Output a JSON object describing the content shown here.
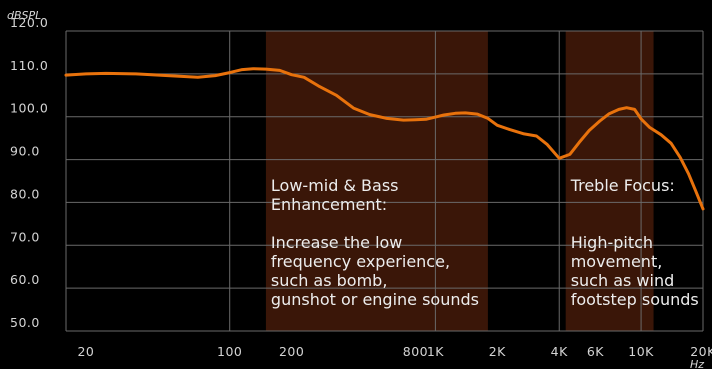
{
  "chart_data": {
    "type": "line",
    "ylabel": "dBSPL",
    "xunit": "Hz",
    "xscale": "log",
    "xlim": [
      16,
      20000
    ],
    "ylim": [
      50,
      120
    ],
    "grid": true,
    "colors": {
      "background": "#000000",
      "line": "#e8720c",
      "band": "#3a1608",
      "grid": "#6a6a6a",
      "text": "#d4d4d4"
    },
    "y_ticks": [
      {
        "value": 120,
        "label": "120.0"
      },
      {
        "value": 110,
        "label": "110.0"
      },
      {
        "value": 100,
        "label": "100.0"
      },
      {
        "value": 90,
        "label": "90.0"
      },
      {
        "value": 80,
        "label": "80.0"
      },
      {
        "value": 70,
        "label": "70.0"
      },
      {
        "value": 60,
        "label": "60.0"
      },
      {
        "value": 50,
        "label": "50.0"
      }
    ],
    "x_ticks": [
      {
        "value": 20,
        "label": "20"
      },
      {
        "value": 100,
        "label": "100"
      },
      {
        "value": 200,
        "label": "200"
      },
      {
        "value": 800,
        "label": "800"
      },
      {
        "value": 1000,
        "label": "1K"
      },
      {
        "value": 2000,
        "label": "2K"
      },
      {
        "value": 4000,
        "label": "4K"
      },
      {
        "value": 6000,
        "label": "6K"
      },
      {
        "value": 10000,
        "label": "10K"
      },
      {
        "value": 20000,
        "label": "20K"
      }
    ],
    "vertical_gridlines": [
      100,
      1000,
      4000,
      10000
    ],
    "bands": [
      {
        "from": 150,
        "to": 1800
      },
      {
        "from": 4300,
        "to": 11500
      }
    ],
    "annotations": [
      {
        "band": 0,
        "heading": [
          "Low-mid & Bass",
          "Enhancement:"
        ],
        "body": [
          "Increase the low",
          "frequency experience,",
          "such as bomb,",
          "gunshot or engine sounds"
        ]
      },
      {
        "band": 1,
        "heading": [
          "Treble Focus:"
        ],
        "body": [
          "High-pitch",
          "movement,",
          "such as wind",
          "footstep sounds"
        ]
      }
    ],
    "series": [
      {
        "x": [
          16,
          20,
          25,
          35,
          50,
          70,
          85,
          100,
          115,
          130,
          150,
          175,
          200,
          230,
          270,
          330,
          400,
          480,
          580,
          700,
          800,
          900,
          1000,
          1100,
          1250,
          1400,
          1600,
          1800,
          2000,
          2300,
          2700,
          3100,
          3500,
          4000,
          4500,
          5000,
          5600,
          6300,
          7000,
          7800,
          8500,
          9300,
          10000,
          11000,
          12500,
          14000,
          15500,
          17000,
          18500,
          20000
        ],
        "y": [
          109.7,
          110.0,
          110.1,
          110.0,
          109.6,
          109.2,
          109.6,
          110.3,
          111.0,
          111.2,
          111.1,
          110.8,
          109.8,
          109.2,
          107.2,
          105.0,
          102.0,
          100.5,
          99.6,
          99.2,
          99.3,
          99.4,
          99.9,
          100.4,
          100.8,
          100.9,
          100.6,
          99.6,
          98.0,
          97.0,
          96.0,
          95.5,
          93.5,
          90.3,
          91.2,
          94.0,
          96.8,
          99.0,
          100.7,
          101.7,
          102.1,
          101.7,
          99.5,
          97.5,
          95.8,
          93.8,
          90.5,
          86.7,
          82.5,
          78.5
        ]
      }
    ]
  }
}
